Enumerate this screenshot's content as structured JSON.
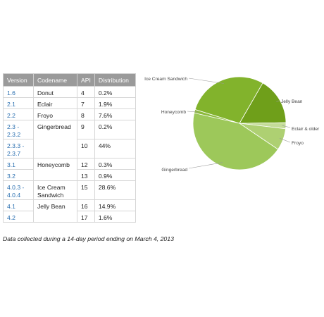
{
  "table": {
    "headers": [
      "Version",
      "Codename",
      "API",
      "Distribution"
    ],
    "rows": [
      {
        "version": "1.6",
        "codename": "Donut",
        "api": "4",
        "distribution": "0.2%"
      },
      {
        "version": "2.1",
        "codename": "Eclair",
        "api": "7",
        "distribution": "1.9%"
      },
      {
        "version": "2.2",
        "codename": "Froyo",
        "api": "8",
        "distribution": "7.6%"
      },
      {
        "version": "2.3 -\n2.3.2",
        "codename": "Gingerbread",
        "api": "9",
        "distribution": "0.2%"
      },
      {
        "version": "2.3.3 -\n2.3.7",
        "codename": "",
        "api": "10",
        "distribution": "44%"
      },
      {
        "version": "3.1",
        "codename": "Honeycomb",
        "api": "12",
        "distribution": "0.3%"
      },
      {
        "version": "3.2",
        "codename": "",
        "api": "13",
        "distribution": "0.9%"
      },
      {
        "version": "4.0.3 -\n4.0.4",
        "codename": "Ice Cream\nSandwich",
        "api": "15",
        "distribution": "28.6%"
      },
      {
        "version": "4.1",
        "codename": "Jelly Bean",
        "api": "16",
        "distribution": "14.9%"
      },
      {
        "version": "4.2",
        "codename": "",
        "api": "17",
        "distribution": "1.6%"
      }
    ]
  },
  "caption": "Data collected during a 14-day period ending on March 4, 2013",
  "chart_data": {
    "type": "pie",
    "title": "",
    "slices": [
      {
        "label": "Jelly Bean",
        "value": 16.5,
        "color": "#6f9f1a"
      },
      {
        "label": "Eclair & older",
        "value": 2.1,
        "color": "#c4dc98"
      },
      {
        "label": "Froyo",
        "value": 7.6,
        "color": "#aed072"
      },
      {
        "label": "Gingerbread",
        "value": 44.2,
        "color": "#9dc85a"
      },
      {
        "label": "Honeycomb",
        "value": 1.2,
        "color": "#8cba3c"
      },
      {
        "label": "Ice Cream Sandwich",
        "value": 28.6,
        "color": "#82b32c"
      }
    ],
    "legend": "none"
  }
}
